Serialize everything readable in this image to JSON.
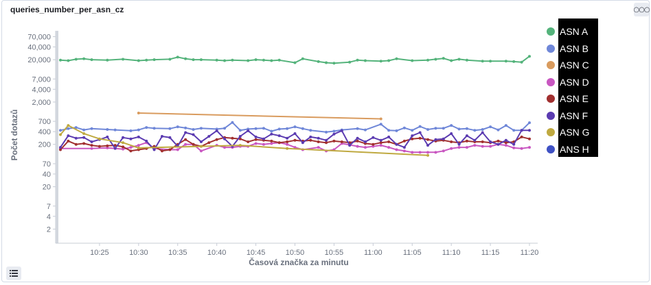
{
  "panel": {
    "title": "queries_number_per_asn_cz",
    "menu_icon": "ellipsis-icon",
    "legend_toggle_icon": "list-icon"
  },
  "chart_data": {
    "type": "line",
    "title": "queries_number_per_asn_cz",
    "xlabel": "Časová značka za minutu",
    "ylabel": "Počet dotazů",
    "yscale": "log",
    "ylim": [
      1,
      120000
    ],
    "xlim": [
      "10:21",
      "10:20"
    ],
    "x_ticks": [
      "10:25",
      "10:30",
      "10:35",
      "10:40",
      "10:45",
      "10:50",
      "10:55",
      "11:00",
      "11:05",
      "11:10",
      "11:15",
      "11:20"
    ],
    "y_ticks": [
      {
        "value": 70000,
        "label": "70,000"
      },
      {
        "value": 40000,
        "label": "40,000"
      },
      {
        "value": 20000,
        "label": "20,000"
      },
      {
        "value": 7000,
        "label": "7,000"
      },
      {
        "value": 4000,
        "label": "4,000"
      },
      {
        "value": 2000,
        "label": "2,000"
      },
      {
        "value": 700,
        "label": "700"
      },
      {
        "value": 400,
        "label": "400"
      },
      {
        "value": 200,
        "label": "200"
      },
      {
        "value": 70,
        "label": "70"
      },
      {
        "value": 40,
        "label": "40"
      },
      {
        "value": 20,
        "label": "20"
      },
      {
        "value": 7,
        "label": "7"
      },
      {
        "value": 4,
        "label": "4"
      },
      {
        "value": 2,
        "label": "2"
      }
    ],
    "grid": false,
    "legend_position": "right",
    "series": [
      {
        "name": "ASN A",
        "color": "#54b37b",
        "x": [
          "10:20",
          "10:21",
          "10:22",
          "10:23",
          "10:24",
          "10:26",
          "10:28",
          "10:30",
          "10:31",
          "10:32",
          "10:34",
          "10:35",
          "10:36",
          "10:37",
          "10:38",
          "10:40",
          "10:41",
          "10:42",
          "10:44",
          "10:45",
          "10:46",
          "10:47",
          "10:48",
          "10:50",
          "10:51",
          "10:53",
          "10:54",
          "10:55",
          "10:57",
          "10:58",
          "10:59",
          "11:01",
          "11:02",
          "11:03",
          "11:05",
          "11:07",
          "11:08",
          "11:09",
          "11:10",
          "11:11",
          "11:12",
          "11:14",
          "11:15",
          "11:17",
          "11:18",
          "11:19",
          "11:20"
        ],
        "y": [
          19500,
          19000,
          20500,
          21000,
          20000,
          19500,
          20500,
          19000,
          19500,
          20000,
          20500,
          23000,
          21000,
          20000,
          20000,
          19500,
          19000,
          19500,
          19000,
          20000,
          19500,
          19000,
          19500,
          17000,
          21000,
          18000,
          17000,
          16500,
          17500,
          19500,
          19000,
          18500,
          19000,
          21000,
          19000,
          19500,
          20500,
          21500,
          19000,
          20500,
          19500,
          18500,
          18500,
          18500,
          18000,
          17500,
          24000
        ]
      },
      {
        "name": "ASN B",
        "color": "#6f87d8",
        "x": [
          "10:20",
          "10:21",
          "10:22",
          "10:23",
          "10:24",
          "10:26",
          "10:27",
          "10:29",
          "10:30",
          "10:31",
          "10:32",
          "10:34",
          "10:35",
          "10:36",
          "10:37",
          "10:38",
          "10:40",
          "10:41",
          "10:42",
          "10:43",
          "10:44",
          "10:45",
          "10:46",
          "10:47",
          "10:48",
          "10:49",
          "10:50",
          "10:51",
          "10:52",
          "10:54",
          "10:55",
          "10:56",
          "10:58",
          "10:59",
          "11:01",
          "11:02",
          "11:03",
          "11:04",
          "11:05",
          "11:06",
          "11:07",
          "11:08",
          "11:09",
          "11:10",
          "11:11",
          "11:12",
          "11:13",
          "11:14",
          "11:15",
          "11:16",
          "11:17",
          "11:18",
          "11:19",
          "11:20"
        ],
        "y": [
          430,
          470,
          500,
          440,
          470,
          450,
          440,
          420,
          440,
          500,
          480,
          470,
          520,
          490,
          450,
          480,
          460,
          480,
          660,
          430,
          460,
          470,
          480,
          410,
          460,
          470,
          520,
          470,
          430,
          390,
          410,
          440,
          470,
          440,
          600,
          430,
          420,
          490,
          430,
          530,
          450,
          480,
          480,
          560,
          460,
          470,
          430,
          450,
          520,
          440,
          560,
          430,
          430,
          650
        ]
      },
      {
        "name": "ASN C",
        "color": "#d99b5e",
        "x": [
          "10:30",
          "11:01"
        ],
        "y": [
          1100,
          800
        ]
      },
      {
        "name": "ASN D",
        "color": "#c957c1",
        "x": [
          "10:20",
          "10:24",
          "10:26",
          "10:28",
          "10:29",
          "10:30",
          "10:31",
          "10:32",
          "10:34",
          "10:35",
          "10:36",
          "10:37",
          "10:38",
          "10:40",
          "10:41",
          "10:42",
          "10:43",
          "10:44",
          "10:45",
          "10:46",
          "10:47",
          "10:48",
          "10:49",
          "10:50",
          "10:51",
          "10:53",
          "10:54",
          "10:55",
          "10:56",
          "10:58",
          "10:59",
          "11:00",
          "11:01",
          "11:02",
          "11:03",
          "11:04",
          "11:05",
          "11:06",
          "11:07",
          "11:08",
          "11:09",
          "11:10",
          "11:11",
          "11:12",
          "11:13",
          "11:14",
          "11:15",
          "11:16",
          "11:17",
          "11:18",
          "11:19",
          "11:20"
        ],
        "y": [
          160,
          160,
          165,
          155,
          170,
          190,
          220,
          160,
          150,
          150,
          200,
          200,
          140,
          190,
          170,
          170,
          180,
          180,
          210,
          200,
          210,
          220,
          200,
          170,
          150,
          170,
          140,
          150,
          210,
          180,
          170,
          180,
          190,
          170,
          150,
          140,
          130,
          130,
          130,
          130,
          140,
          160,
          170,
          170,
          190,
          180,
          180,
          200,
          190,
          165,
          160,
          170
        ]
      },
      {
        "name": "ASN E",
        "color": "#a12f2f",
        "x": [
          "10:20",
          "10:21",
          "10:22",
          "10:23",
          "10:24",
          "10:25",
          "10:26",
          "10:27",
          "10:28",
          "10:29",
          "10:30",
          "10:31",
          "10:32",
          "10:33",
          "10:34",
          "10:35",
          "10:36",
          "10:37",
          "10:38",
          "10:39",
          "10:40",
          "10:41",
          "10:42",
          "10:43",
          "10:44",
          "10:45",
          "10:46",
          "10:47",
          "10:48",
          "10:49",
          "10:50",
          "10:51",
          "10:52",
          "10:53",
          "10:54",
          "10:55",
          "10:56",
          "10:57",
          "10:58",
          "10:59",
          "11:00",
          "11:01",
          "11:02",
          "11:03",
          "11:04",
          "11:05",
          "11:06",
          "11:07",
          "11:08",
          "11:09",
          "11:10",
          "11:11",
          "11:12",
          "11:13",
          "11:14",
          "11:15",
          "11:16",
          "11:17",
          "11:18",
          "11:19",
          "11:20"
        ],
        "y": [
          150,
          240,
          200,
          210,
          190,
          180,
          185,
          190,
          175,
          140,
          150,
          160,
          180,
          140,
          150,
          200,
          260,
          200,
          180,
          220,
          260,
          290,
          280,
          270,
          230,
          260,
          250,
          240,
          220,
          230,
          250,
          240,
          250,
          230,
          220,
          240,
          230,
          220,
          240,
          210,
          200,
          220,
          230,
          200,
          240,
          270,
          280,
          260,
          240,
          250,
          230,
          220,
          240,
          230,
          230,
          220,
          240,
          220,
          230,
          300,
          270
        ]
      },
      {
        "name": "ASN F",
        "color": "#5b3bb1",
        "x": [
          "10:20",
          "10:21",
          "10:22",
          "10:23",
          "10:24",
          "10:25",
          "10:26",
          "10:27",
          "10:28",
          "10:29",
          "10:30",
          "10:31",
          "10:32",
          "10:33",
          "10:34",
          "10:35",
          "10:36",
          "10:37",
          "10:38",
          "10:39",
          "10:40",
          "10:41",
          "10:42",
          "10:43",
          "10:44",
          "10:45",
          "10:46",
          "10:47",
          "10:48",
          "10:49",
          "10:50",
          "10:51",
          "10:52",
          "10:53",
          "10:54",
          "10:55",
          "10:56",
          "10:57",
          "10:58",
          "10:59",
          "11:00",
          "11:01",
          "11:02",
          "11:03",
          "11:04",
          "11:05",
          "11:06",
          "11:07",
          "11:08",
          "11:09",
          "11:10",
          "11:11",
          "11:12",
          "11:13",
          "11:14",
          "11:15",
          "11:16",
          "11:17",
          "11:18",
          "11:19",
          "11:20"
        ],
        "y": [
          170,
          320,
          280,
          290,
          230,
          260,
          300,
          160,
          290,
          270,
          300,
          240,
          150,
          310,
          290,
          180,
          380,
          340,
          230,
          310,
          420,
          270,
          180,
          310,
          420,
          300,
          270,
          350,
          320,
          280,
          360,
          220,
          300,
          280,
          250,
          350,
          420,
          190,
          280,
          230,
          290,
          250,
          300,
          200,
          170,
          320,
          380,
          190,
          260,
          270,
          360,
          200,
          320,
          250,
          380,
          230,
          200,
          250,
          200,
          430,
          430
        ]
      },
      {
        "name": "ASN G",
        "color": "#bfa940",
        "x": [
          "10:20",
          "10:21",
          "10:23",
          "10:25",
          "10:28",
          "10:30",
          "10:38",
          "10:43",
          "10:49",
          "11:07"
        ],
        "y": [
          340,
          560,
          360,
          270,
          220,
          165,
          180,
          190,
          160,
          110
        ]
      },
      {
        "name": "ANS H",
        "color": "#3f51c4",
        "x": [],
        "y": []
      }
    ]
  }
}
